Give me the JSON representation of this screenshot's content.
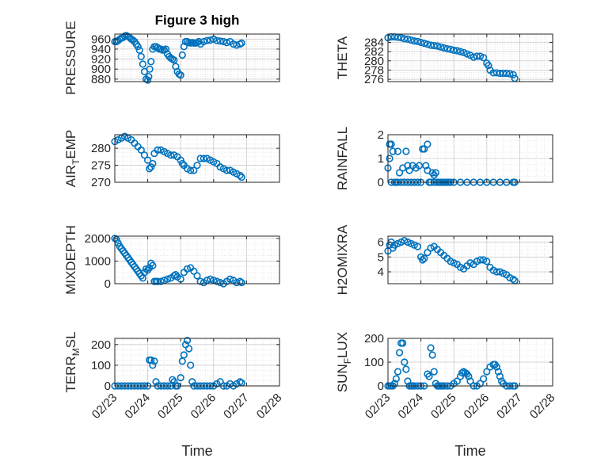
{
  "figure": {
    "title": "Figure 3 high",
    "background": "#ffffff",
    "marker_color": "#0072bd"
  },
  "chart_data": [
    {
      "id": "pressure",
      "type": "scatter",
      "title": "Figure 3 high",
      "ylabel": "PRESSURE",
      "ylabel_sub": "",
      "xlim": [
        "02/23",
        "02/28"
      ],
      "ylim": [
        875,
        970
      ],
      "yticks": [
        880,
        900,
        920,
        940,
        960
      ],
      "xticklabels": [],
      "xlabel": "",
      "grid": true,
      "x": [
        0.0,
        0.05,
        0.1,
        0.15,
        0.2,
        0.25,
        0.3,
        0.35,
        0.4,
        0.45,
        0.5,
        0.55,
        0.6,
        0.65,
        0.7,
        0.75,
        0.8,
        0.85,
        0.9,
        0.95,
        1.0,
        1.03,
        1.06,
        1.1,
        1.15,
        1.2,
        1.25,
        1.3,
        1.35,
        1.4,
        1.45,
        1.5,
        1.55,
        1.6,
        1.65,
        1.7,
        1.75,
        1.8,
        1.85,
        1.9,
        1.95,
        2.0,
        2.05,
        2.1,
        2.15,
        2.2,
        2.25,
        2.3,
        2.35,
        2.4,
        2.45,
        2.5,
        2.55,
        2.6,
        2.7,
        2.8,
        2.9,
        3.0,
        3.1,
        3.2,
        3.3,
        3.4,
        3.5,
        3.6,
        3.7,
        3.8,
        3.85
      ],
      "y": [
        955,
        955,
        957,
        960,
        962,
        963,
        966,
        967,
        965,
        963,
        960,
        958,
        955,
        950,
        945,
        938,
        925,
        910,
        895,
        880,
        878,
        885,
        900,
        915,
        940,
        945,
        945,
        943,
        940,
        940,
        938,
        938,
        940,
        930,
        925,
        922,
        920,
        918,
        905,
        895,
        890,
        888,
        928,
        945,
        955,
        955,
        953,
        952,
        953,
        952,
        952,
        953,
        955,
        950,
        955,
        957,
        958,
        960,
        957,
        956,
        955,
        953,
        955,
        950,
        948,
        950,
        952
      ]
    },
    {
      "id": "theta",
      "type": "scatter",
      "title": "",
      "ylabel": "THETA",
      "ylabel_sub": "",
      "xlim": [
        "02/23",
        "02/28"
      ],
      "ylim": [
        275.5,
        285.8
      ],
      "yticks": [
        276,
        278,
        280,
        282,
        284
      ],
      "xticklabels": [],
      "xlabel": "",
      "grid": true,
      "x": [
        0.0,
        0.1,
        0.2,
        0.3,
        0.4,
        0.5,
        0.6,
        0.7,
        0.8,
        0.9,
        1.0,
        1.1,
        1.2,
        1.3,
        1.4,
        1.5,
        1.6,
        1.7,
        1.8,
        1.9,
        2.0,
        2.1,
        2.2,
        2.3,
        2.4,
        2.5,
        2.6,
        2.7,
        2.8,
        2.9,
        3.0,
        3.05,
        3.1,
        3.2,
        3.3,
        3.4,
        3.5,
        3.6,
        3.7,
        3.8,
        3.85
      ],
      "y": [
        285.0,
        285.2,
        285.2,
        285.1,
        285.0,
        284.8,
        284.7,
        284.5,
        284.3,
        284.2,
        284.0,
        283.8,
        283.6,
        283.4,
        283.3,
        283.2,
        283.0,
        282.8,
        282.6,
        282.5,
        282.3,
        282.2,
        282.0,
        281.8,
        281.5,
        281.2,
        280.8,
        281.0,
        281.0,
        280.7,
        279.5,
        279.0,
        278.0,
        277.4,
        277.4,
        277.3,
        277.3,
        277.3,
        277.2,
        277.0,
        276.2
      ]
    },
    {
      "id": "air_temp",
      "type": "scatter",
      "title": "",
      "ylabel": "AIR_TEMP",
      "ylabel_sub": "T",
      "xlim": [
        "02/23",
        "02/28"
      ],
      "ylim": [
        270,
        284
      ],
      "yticks": [
        270,
        275,
        280
      ],
      "xticklabels": [],
      "xlabel": "",
      "grid": true,
      "x": [
        0.0,
        0.1,
        0.2,
        0.3,
        0.4,
        0.5,
        0.6,
        0.7,
        0.8,
        0.9,
        1.0,
        1.05,
        1.1,
        1.15,
        1.2,
        1.3,
        1.4,
        1.5,
        1.6,
        1.7,
        1.8,
        1.9,
        2.0,
        2.05,
        2.1,
        2.2,
        2.3,
        2.4,
        2.5,
        2.6,
        2.7,
        2.8,
        2.9,
        3.0,
        3.1,
        3.2,
        3.3,
        3.4,
        3.5,
        3.6,
        3.7,
        3.8,
        3.85
      ],
      "y": [
        282.0,
        282.5,
        283.0,
        283.5,
        283.0,
        282.5,
        281.5,
        280.5,
        279.5,
        278.0,
        276.5,
        274.0,
        274.5,
        275.5,
        278.5,
        279.5,
        279.5,
        279.0,
        278.5,
        278.0,
        278.0,
        277.5,
        276.5,
        275.5,
        275.0,
        274.0,
        273.5,
        273.5,
        275.0,
        277.0,
        277.0,
        277.0,
        276.5,
        276.0,
        275.5,
        274.5,
        274.0,
        273.5,
        273.5,
        273.0,
        272.5,
        272.0,
        271.5
      ]
    },
    {
      "id": "rainfall",
      "type": "scatter",
      "title": "",
      "ylabel": "RAINFALL",
      "ylabel_sub": "",
      "xlim": [
        "02/23",
        "02/28"
      ],
      "ylim": [
        0,
        2
      ],
      "yticks": [
        0,
        1,
        2
      ],
      "xticklabels": [],
      "xlabel": "",
      "grid": true,
      "x": [
        0.0,
        0.05,
        0.05,
        0.1,
        0.1,
        0.15,
        0.2,
        0.25,
        0.3,
        0.3,
        0.35,
        0.4,
        0.45,
        0.5,
        0.55,
        0.6,
        0.6,
        0.65,
        0.7,
        0.75,
        0.8,
        0.85,
        0.9,
        0.95,
        1.0,
        1.05,
        1.1,
        1.15,
        1.2,
        1.2,
        1.25,
        1.3,
        1.35,
        1.4,
        1.4,
        1.45,
        1.5,
        1.55,
        1.6,
        1.65,
        1.7,
        1.75,
        1.8,
        1.85,
        1.9,
        2.0,
        2.2,
        2.4,
        2.6,
        2.8,
        3.0,
        3.2,
        3.4,
        3.6,
        3.8,
        3.85
      ],
      "y": [
        0.6,
        1.6,
        1.0,
        0.0,
        1.6,
        1.3,
        0.0,
        0.0,
        1.3,
        0.0,
        0.4,
        0.0,
        0.6,
        0.0,
        1.3,
        0.7,
        0.0,
        0.5,
        0.0,
        0.7,
        0.0,
        0.6,
        0.0,
        0.7,
        0.0,
        1.4,
        1.4,
        0.7,
        1.6,
        0.5,
        0.0,
        0.0,
        0.4,
        0.3,
        0.0,
        0.4,
        0.0,
        0.0,
        0.0,
        0.0,
        0.0,
        0.0,
        0.0,
        0.0,
        0.0,
        0.0,
        0.0,
        0.0,
        0.0,
        0.0,
        0.0,
        0.0,
        0.0,
        0.0,
        0.0,
        0.0
      ]
    },
    {
      "id": "mixdepth",
      "type": "scatter",
      "title": "",
      "ylabel": "MIXDEPTH",
      "ylabel_sub": "",
      "xlim": [
        "02/23",
        "02/28"
      ],
      "ylim": [
        0,
        2100
      ],
      "yticks": [
        0,
        1000,
        2000
      ],
      "xticklabels": [],
      "xlabel": "",
      "grid": true,
      "x": [
        0.0,
        0.05,
        0.1,
        0.15,
        0.2,
        0.25,
        0.3,
        0.35,
        0.4,
        0.45,
        0.5,
        0.55,
        0.6,
        0.65,
        0.7,
        0.75,
        0.8,
        0.85,
        0.9,
        0.95,
        1.0,
        1.05,
        1.1,
        1.15,
        1.2,
        1.25,
        1.3,
        1.4,
        1.5,
        1.6,
        1.7,
        1.8,
        1.85,
        1.9,
        2.0,
        2.1,
        2.2,
        2.3,
        2.4,
        2.5,
        2.6,
        2.7,
        2.8,
        2.9,
        3.0,
        3.1,
        3.2,
        3.3,
        3.4,
        3.5,
        3.6,
        3.7,
        3.8,
        3.85
      ],
      "y": [
        2000,
        1950,
        1800,
        1650,
        1550,
        1450,
        1350,
        1250,
        1150,
        1050,
        950,
        850,
        750,
        650,
        550,
        450,
        350,
        250,
        500,
        650,
        600,
        700,
        900,
        800,
        100,
        100,
        100,
        100,
        150,
        200,
        250,
        350,
        400,
        300,
        200,
        500,
        650,
        700,
        550,
        350,
        100,
        50,
        150,
        200,
        150,
        100,
        50,
        0,
        100,
        200,
        150,
        50,
        100,
        50
      ]
    },
    {
      "id": "h2omixra",
      "type": "scatter",
      "title": "",
      "ylabel": "H2OMIXRA",
      "ylabel_sub": "",
      "xlim": [
        "02/23",
        "02/28"
      ],
      "ylim": [
        3.2,
        6.4
      ],
      "yticks": [
        4,
        5,
        6
      ],
      "xticklabels": [],
      "xlabel": "",
      "grid": true,
      "x": [
        0.0,
        0.05,
        0.1,
        0.15,
        0.2,
        0.3,
        0.4,
        0.5,
        0.6,
        0.7,
        0.8,
        0.9,
        1.0,
        1.05,
        1.1,
        1.2,
        1.3,
        1.4,
        1.5,
        1.6,
        1.7,
        1.8,
        1.9,
        2.0,
        2.1,
        2.2,
        2.3,
        2.4,
        2.5,
        2.6,
        2.7,
        2.8,
        2.9,
        3.0,
        3.1,
        3.2,
        3.3,
        3.4,
        3.5,
        3.6,
        3.7,
        3.8,
        3.85
      ],
      "y": [
        5.4,
        5.8,
        6.0,
        5.6,
        5.8,
        5.9,
        6.0,
        6.1,
        6.0,
        5.9,
        5.8,
        5.7,
        5.0,
        4.8,
        4.9,
        5.3,
        5.6,
        5.7,
        5.5,
        5.3,
        5.1,
        4.9,
        4.7,
        4.6,
        4.5,
        4.3,
        4.2,
        4.4,
        4.6,
        4.5,
        4.7,
        4.8,
        4.8,
        4.7,
        4.3,
        4.1,
        4.0,
        4.0,
        3.9,
        3.8,
        3.6,
        3.5,
        3.4
      ]
    },
    {
      "id": "terr_msl",
      "type": "scatter",
      "title": "",
      "ylabel": "TERR_MSL",
      "ylabel_sub": "M",
      "xlim": [
        "02/23",
        "02/28"
      ],
      "ylim": [
        0,
        230
      ],
      "yticks": [
        0,
        100,
        200
      ],
      "xticklabels": [
        "02/23",
        "02/24",
        "02/25",
        "02/26",
        "02/27",
        "02/28"
      ],
      "xlabel": "Time",
      "grid": true,
      "x": [
        0.0,
        0.1,
        0.2,
        0.3,
        0.4,
        0.5,
        0.6,
        0.7,
        0.8,
        0.9,
        1.0,
        1.05,
        1.1,
        1.15,
        1.2,
        1.25,
        1.3,
        1.4,
        1.5,
        1.6,
        1.7,
        1.75,
        1.8,
        1.85,
        1.9,
        2.0,
        2.05,
        2.1,
        2.15,
        2.2,
        2.25,
        2.3,
        2.35,
        2.4,
        2.5,
        2.6,
        2.7,
        2.8,
        2.9,
        3.0,
        3.1,
        3.2,
        3.3,
        3.4,
        3.5,
        3.6,
        3.7,
        3.8,
        3.85
      ],
      "y": [
        0,
        0,
        0,
        0,
        0,
        0,
        0,
        0,
        0,
        0,
        0,
        125,
        125,
        100,
        120,
        20,
        0,
        0,
        0,
        0,
        0,
        30,
        20,
        0,
        0,
        40,
        120,
        150,
        200,
        220,
        180,
        100,
        20,
        0,
        0,
        0,
        0,
        0,
        0,
        0,
        10,
        20,
        0,
        0,
        10,
        0,
        10,
        20,
        15
      ]
    },
    {
      "id": "sun_flux",
      "type": "scatter",
      "title": "",
      "ylabel": "SUN_FLUX",
      "ylabel_sub": "F",
      "xlim": [
        "02/23",
        "02/28"
      ],
      "ylim": [
        0,
        200
      ],
      "yticks": [
        0,
        100,
        200
      ],
      "xticklabels": [
        "02/23",
        "02/24",
        "02/25",
        "02/26",
        "02/27",
        "02/28"
      ],
      "xlabel": "Time",
      "grid": true,
      "x": [
        0.0,
        0.05,
        0.1,
        0.15,
        0.2,
        0.25,
        0.3,
        0.35,
        0.4,
        0.45,
        0.5,
        0.55,
        0.6,
        0.65,
        0.7,
        0.75,
        0.8,
        0.9,
        1.0,
        1.1,
        1.2,
        1.25,
        1.3,
        1.35,
        1.4,
        1.45,
        1.5,
        1.55,
        1.6,
        1.65,
        1.7,
        1.8,
        1.9,
        2.0,
        2.1,
        2.2,
        2.25,
        2.3,
        2.35,
        2.4,
        2.45,
        2.5,
        2.6,
        2.7,
        2.8,
        2.9,
        3.0,
        3.1,
        3.2,
        3.25,
        3.3,
        3.35,
        3.4,
        3.45,
        3.5,
        3.6,
        3.7,
        3.8,
        3.85
      ],
      "y": [
        0,
        0,
        0,
        0,
        10,
        30,
        60,
        140,
        180,
        180,
        100,
        70,
        20,
        0,
        0,
        0,
        0,
        0,
        0,
        0,
        50,
        40,
        160,
        130,
        60,
        10,
        0,
        0,
        0,
        0,
        0,
        0,
        0,
        10,
        20,
        40,
        55,
        60,
        55,
        50,
        40,
        20,
        0,
        0,
        10,
        30,
        60,
        80,
        90,
        90,
        80,
        60,
        40,
        20,
        10,
        0,
        0,
        0,
        0
      ]
    }
  ]
}
